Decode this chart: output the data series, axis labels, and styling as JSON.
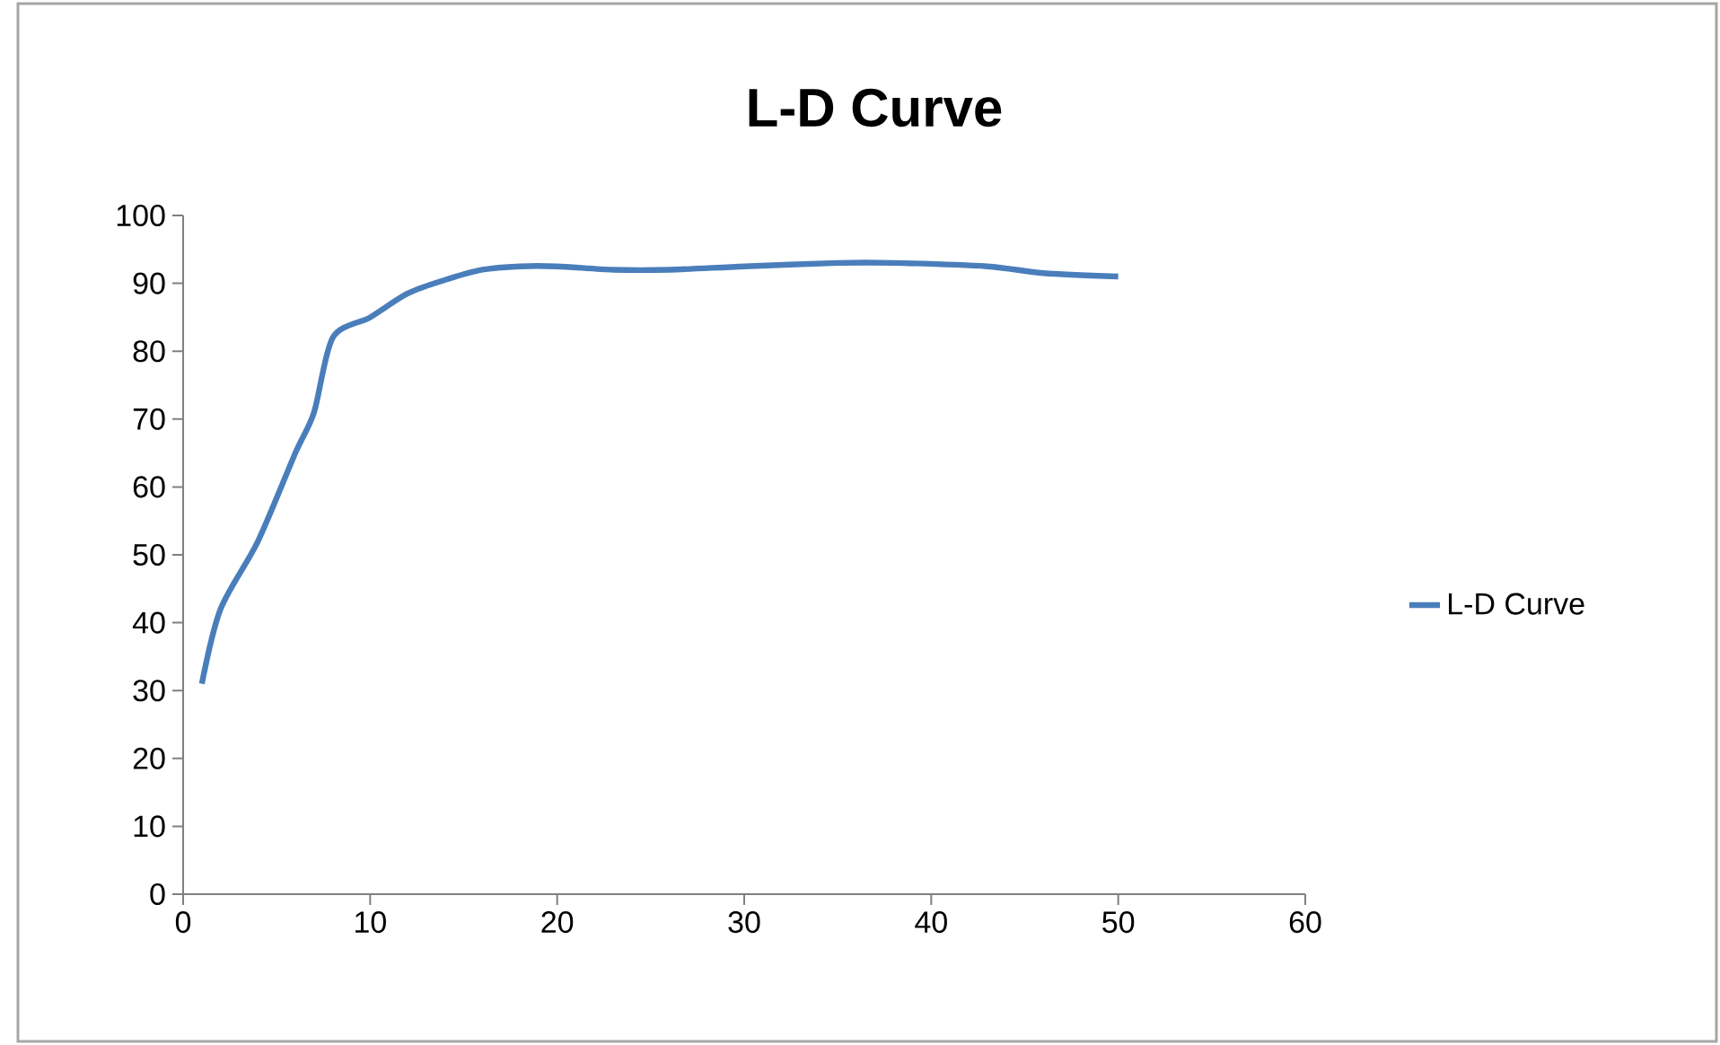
{
  "chart_data": {
    "type": "line",
    "title": "L-D Curve",
    "series": [
      {
        "name": "L-D Curve",
        "color": "#4a7ebb",
        "x": [
          1,
          2,
          4,
          6,
          7,
          8,
          10,
          12,
          14,
          16,
          18,
          20,
          23,
          26,
          30,
          35,
          38,
          43,
          46,
          50
        ],
        "values": [
          31,
          42,
          52,
          65,
          71,
          82,
          85,
          88.5,
          90.5,
          92,
          92.5,
          92.5,
          92,
          92,
          92.5,
          93,
          93,
          92.5,
          91.5,
          91
        ]
      }
    ],
    "xlim": [
      0,
      60
    ],
    "xticks": [
      0,
      10,
      20,
      30,
      40,
      50,
      60
    ],
    "ylim": [
      0,
      100
    ],
    "yticks": [
      0,
      10,
      20,
      30,
      40,
      50,
      60,
      70,
      80,
      90,
      100
    ],
    "grid": false,
    "legend": "right",
    "marker": "none",
    "line_style": "solid"
  }
}
